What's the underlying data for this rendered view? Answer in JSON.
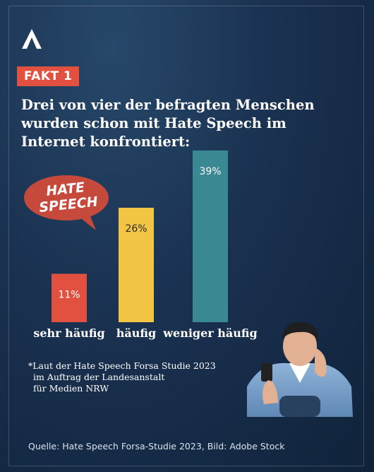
{
  "badge": "FAKT 1",
  "headline_lines": [
    "Drei von vier der befragten Menschen",
    "wurden schon mit Hate Speech im",
    "Internet konfrontiert:"
  ],
  "bubble": {
    "line1": "HATE",
    "line2": "SPEECH"
  },
  "chart_data": {
    "type": "bar",
    "categories": [
      "sehr häufig",
      "häufig",
      "weniger häufig"
    ],
    "values": [
      11,
      26,
      39
    ],
    "value_labels": [
      "11%",
      "26%",
      "39%"
    ],
    "colors": [
      "#e2513f",
      "#f3c544",
      "#3a8892"
    ],
    "label_colors": [
      "#ffffff",
      "#2a2a2a",
      "#ffffff"
    ],
    "ylim": [
      0,
      39
    ],
    "grid": false,
    "legend": "none"
  },
  "note_lines": [
    "*Laut der Hate Speech Forsa Studie 2023",
    "im Auftrag der Landesanstalt",
    "für Medien NRW"
  ],
  "source": "Quelle: Hate Speech Forsa-Studie 2023, Bild: Adobe Stock",
  "icons": {
    "logo": "logo-a-icon",
    "bubble": "speech-bubble-icon",
    "photo": "person-with-phone-illustration"
  }
}
